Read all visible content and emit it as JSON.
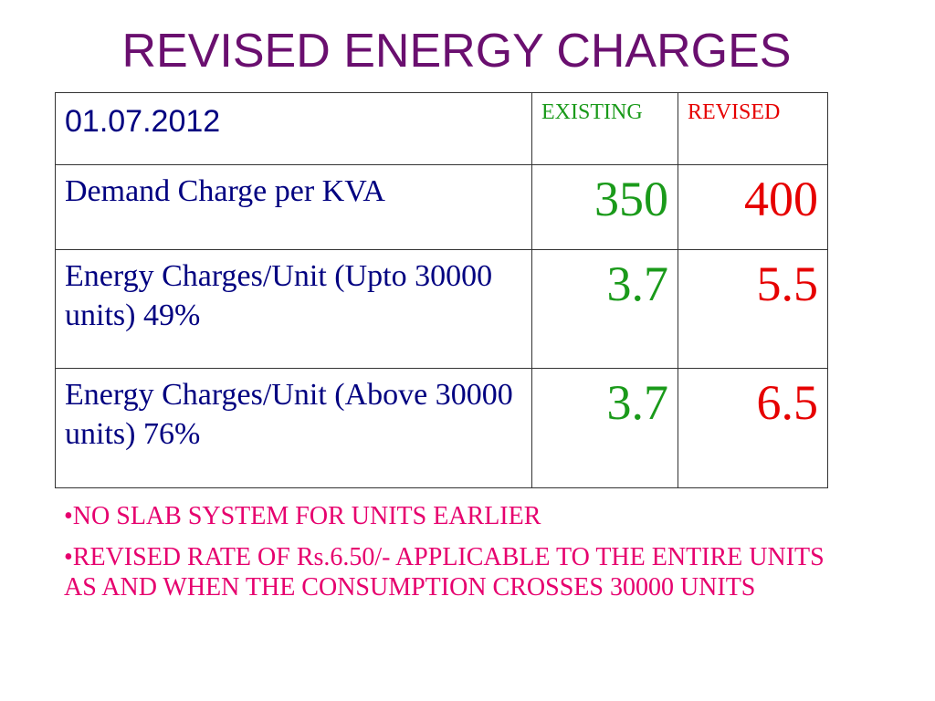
{
  "title": "REVISED ENERGY CHARGES",
  "table": {
    "date": "01.07.2012",
    "header_existing": "EXISTING",
    "header_revised": "REVISED",
    "rows": [
      {
        "label": "Demand Charge per KVA",
        "existing": "350",
        "revised": "400"
      },
      {
        "label": "Energy Charges/Unit (Upto 30000 units) 49%",
        "existing": "3.7",
        "revised": "5.5"
      },
      {
        "label": "Energy Charges/Unit (Above 30000 units) 76%",
        "existing": "3.7",
        "revised": "6.5"
      }
    ]
  },
  "notes": [
    "•NO SLAB SYSTEM FOR UNITS EARLIER",
    "•REVISED RATE OF Rs.6.50/- APPLICABLE TO THE ENTIRE UNITS AS AND WHEN THE CONSUMPTION CROSSES 30000 UNITS"
  ],
  "colors": {
    "title": "#6a0f6f",
    "label_text": "#000080",
    "existing": "#1a9a1a",
    "revised": "#e60000",
    "notes": "#e6006e"
  }
}
